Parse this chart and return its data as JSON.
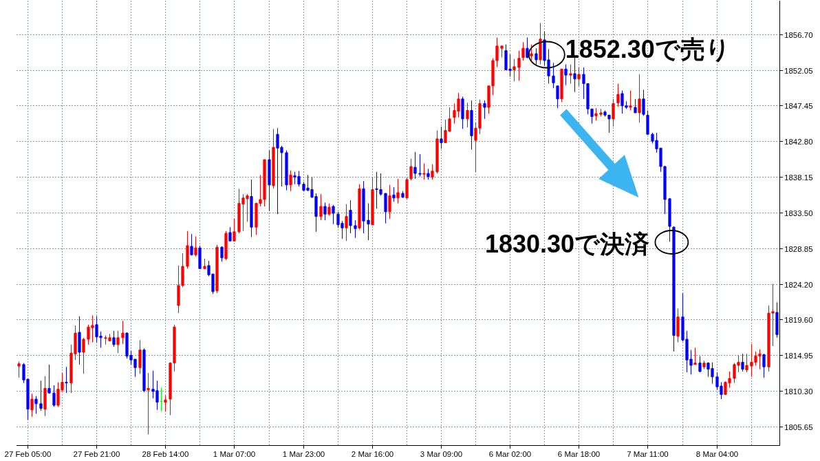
{
  "chart_data": {
    "type": "candlestick",
    "categories": [
      null,
      null,
      "27 Feb 05:00",
      null,
      null,
      null,
      null,
      null,
      null,
      null,
      null,
      null,
      null,
      null,
      null,
      null,
      null,
      null,
      "27 Feb 21:00",
      null,
      null,
      null,
      null,
      null,
      null,
      null,
      null,
      null,
      null,
      null,
      null,
      null,
      null,
      null,
      "28 Feb 14:00",
      null,
      null,
      null,
      null,
      null,
      null,
      null,
      null,
      null,
      null,
      null,
      null,
      null,
      null,
      null,
      "1 Mar 07:00",
      null,
      null,
      null,
      null,
      null,
      null,
      null,
      null,
      null,
      null,
      null,
      null,
      null,
      null,
      null,
      "1 Mar 23:00",
      null,
      null,
      null,
      null,
      null,
      null,
      null,
      null,
      null,
      null,
      null,
      null,
      null,
      null,
      null,
      "2 Mar 16:00",
      null,
      null,
      null,
      null,
      null,
      null,
      null,
      null,
      null,
      null,
      null,
      null,
      null,
      null,
      null,
      "3 Mar 09:00",
      null,
      null,
      null,
      null,
      null,
      null,
      null,
      null,
      null,
      null,
      null,
      null,
      null,
      null,
      null,
      "6 Mar 02:00",
      null,
      null,
      null,
      null,
      null,
      null,
      null,
      null,
      null,
      null,
      null,
      null,
      null,
      null,
      null,
      "6 Mar 18:00",
      null,
      null,
      null,
      null,
      null,
      null,
      null,
      null,
      null,
      null,
      null,
      null,
      null,
      null,
      null,
      "7 Mar 11:00",
      null,
      null,
      null,
      null,
      null,
      null,
      null,
      null,
      null,
      null,
      null,
      null,
      null,
      null,
      null,
      "8 Mar 04:00",
      null,
      null,
      null,
      null,
      null,
      null,
      null,
      null,
      null,
      null,
      null,
      null,
      null,
      null
    ],
    "ohlc": [
      [
        1813.5,
        1814.1,
        1812.0,
        1813.8
      ],
      [
        1813.7,
        1813.9,
        1811.3,
        1811.7
      ],
      [
        1811.8,
        1811.8,
        1806.5,
        1807.9
      ],
      [
        1807.8,
        1809.9,
        1806.9,
        1809.2
      ],
      [
        1809.2,
        1809.6,
        1807.3,
        1808.6
      ],
      [
        1808.6,
        1811.6,
        1807.7,
        1808.0
      ],
      [
        1807.9,
        1812.2,
        1807.0,
        1810.6
      ],
      [
        1810.6,
        1813.7,
        1809.9,
        1810.0
      ],
      [
        1810.0,
        1811.0,
        1808.2,
        1808.4
      ],
      [
        1808.4,
        1811.4,
        1808.2,
        1810.5
      ],
      [
        1810.4,
        1812.6,
        1810.2,
        1811.4
      ],
      [
        1811.4,
        1813.4,
        1810.0,
        1811.3
      ],
      [
        1811.3,
        1816.3,
        1810.0,
        1815.2
      ],
      [
        1815.1,
        1818.8,
        1814.3,
        1817.8
      ],
      [
        1817.9,
        1820.0,
        1813.7,
        1815.3
      ],
      [
        1815.3,
        1817.2,
        1812.5,
        1817.0
      ],
      [
        1817.0,
        1818.9,
        1816.3,
        1818.6
      ],
      [
        1818.5,
        1820.1,
        1816.6,
        1818.8
      ],
      [
        1818.9,
        1820.0,
        1816.6,
        1817.3
      ],
      [
        1817.4,
        1818.0,
        1815.9,
        1817.2
      ],
      [
        1817.1,
        1817.5,
        1816.3,
        1817.2
      ],
      [
        1816.8,
        1817.7,
        1816.7,
        1817.2
      ],
      [
        1817.2,
        1818.1,
        1816.0,
        1816.3
      ],
      [
        1816.3,
        1818.1,
        1815.2,
        1817.2
      ],
      [
        1817.2,
        1819.4,
        1816.4,
        1817.8
      ],
      [
        1817.8,
        1817.9,
        1814.5,
        1814.8
      ],
      [
        1814.9,
        1815.5,
        1813.7,
        1814.3
      ],
      [
        1814.4,
        1814.4,
        1812.1,
        1813.3
      ],
      [
        1813.3,
        1816.9,
        1812.5,
        1815.6
      ],
      [
        1815.6,
        1815.8,
        1810.1,
        1810.3
      ],
      [
        1810.4,
        1812.6,
        1804.6,
        1810.6
      ],
      [
        1810.5,
        1812.9,
        1809.3,
        1810.2
      ],
      [
        1810.3,
        1811.6,
        1807.8,
        1808.8
      ],
      [
        1808.9,
        1810.7,
        1807.6,
        1808.9
      ],
      [
        1808.8,
        1809.7,
        1807.6,
        1809.1
      ],
      [
        1809.2,
        1814.0,
        1807.1,
        1813.9
      ],
      [
        1813.9,
        1818.9,
        1812.8,
        1818.6
      ],
      [
        1821.4,
        1826.6,
        1820.4,
        1824.0
      ],
      [
        1824.0,
        1828.2,
        1823.8,
        1826.5
      ],
      [
        1826.5,
        1831.1,
        1826.2,
        1829.2
      ],
      [
        1829.1,
        1830.7,
        1827.9,
        1828.0
      ],
      [
        1828.0,
        1830.4,
        1827.8,
        1828.9
      ],
      [
        1828.9,
        1829.2,
        1826.2,
        1826.2
      ],
      [
        1826.2,
        1827.5,
        1826.2,
        1826.5
      ],
      [
        1826.6,
        1827.2,
        1825.2,
        1825.4
      ],
      [
        1825.5,
        1825.5,
        1822.9,
        1823.2
      ],
      [
        1823.3,
        1829.3,
        1823.0,
        1829.0
      ],
      [
        1829.0,
        1829.1,
        1827.1,
        1827.6
      ],
      [
        1827.5,
        1831.1,
        1827.3,
        1830.8
      ],
      [
        1830.9,
        1831.6,
        1829.8,
        1829.8
      ],
      [
        1829.8,
        1832.7,
        1829.8,
        1831.0
      ],
      [
        1831.0,
        1836.6,
        1830.8,
        1834.7
      ],
      [
        1834.6,
        1835.9,
        1831.1,
        1835.4
      ],
      [
        1835.3,
        1835.9,
        1832.3,
        1835.7
      ],
      [
        1835.6,
        1837.8,
        1830.3,
        1831.6
      ],
      [
        1831.6,
        1834.8,
        1830.6,
        1834.7
      ],
      [
        1834.7,
        1838.4,
        1834.3,
        1835.2
      ],
      [
        1835.2,
        1840.4,
        1834.3,
        1840.4
      ],
      [
        1840.4,
        1841.6,
        1833.7,
        1837.1
      ],
      [
        1837.0,
        1844.4,
        1836.6,
        1842.0
      ],
      [
        1843.7,
        1844.5,
        1833.3,
        1841.9
      ],
      [
        1842.0,
        1842.2,
        1836.9,
        1841.3
      ],
      [
        1841.3,
        1841.6,
        1836.4,
        1837.1
      ],
      [
        1837.1,
        1839.0,
        1836.3,
        1838.4
      ],
      [
        1838.3,
        1838.8,
        1837.2,
        1838.1
      ],
      [
        1838.2,
        1838.9,
        1836.9,
        1837.2
      ],
      [
        1837.2,
        1837.5,
        1836.3,
        1836.4
      ],
      [
        1836.7,
        1838.4,
        1836.3,
        1836.4
      ],
      [
        1836.5,
        1838.1,
        1835.4,
        1835.5
      ],
      [
        1835.6,
        1836.0,
        1831.0,
        1833.0
      ],
      [
        1833.0,
        1835.9,
        1832.5,
        1834.3
      ],
      [
        1834.3,
        1834.8,
        1832.5,
        1833.3
      ],
      [
        1833.3,
        1834.7,
        1833.1,
        1834.2
      ],
      [
        1834.3,
        1834.5,
        1832.0,
        1833.4
      ],
      [
        1833.3,
        1833.6,
        1831.5,
        1831.9
      ],
      [
        1832.1,
        1832.4,
        1830.1,
        1831.5
      ],
      [
        1831.5,
        1834.6,
        1829.8,
        1833.0
      ],
      [
        1833.8,
        1835.1,
        1830.8,
        1831.8
      ],
      [
        1831.8,
        1832.5,
        1830.2,
        1831.4
      ],
      [
        1831.5,
        1837.2,
        1831.3,
        1836.6
      ],
      [
        1836.6,
        1837.6,
        1830.8,
        1832.4
      ],
      [
        1832.5,
        1834.7,
        1829.9,
        1832.0
      ],
      [
        1831.9,
        1838.1,
        1831.9,
        1836.5
      ],
      [
        1836.6,
        1838.8,
        1834.0,
        1836.5
      ],
      [
        1836.5,
        1838.6,
        1835.7,
        1835.9
      ],
      [
        1836.0,
        1836.0,
        1832.1,
        1833.6
      ],
      [
        1833.6,
        1837.1,
        1832.7,
        1835.7
      ],
      [
        1835.8,
        1836.8,
        1834.9,
        1835.4
      ],
      [
        1835.4,
        1837.9,
        1834.7,
        1836.1
      ],
      [
        1836.0,
        1836.3,
        1835.4,
        1835.5
      ],
      [
        1835.4,
        1838.0,
        1835.3,
        1837.8
      ],
      [
        1837.9,
        1840.5,
        1837.7,
        1839.5
      ],
      [
        1839.4,
        1841.4,
        1837.9,
        1838.6
      ],
      [
        1838.6,
        1841.1,
        1838.2,
        1838.5
      ],
      [
        1838.5,
        1839.9,
        1837.8,
        1838.6
      ],
      [
        1838.6,
        1839.2,
        1837.8,
        1838.2
      ],
      [
        1838.1,
        1839.8,
        1837.8,
        1838.9
      ],
      [
        1838.8,
        1844.2,
        1838.6,
        1843.1
      ],
      [
        1843.1,
        1844.7,
        1841.8,
        1842.6
      ],
      [
        1842.6,
        1845.6,
        1842.6,
        1844.2
      ],
      [
        1844.1,
        1847.2,
        1844.0,
        1845.7
      ],
      [
        1845.9,
        1847.7,
        1845.1,
        1846.8
      ],
      [
        1846.7,
        1849.1,
        1845.9,
        1848.3
      ],
      [
        1848.3,
        1848.6,
        1844.4,
        1845.7
      ],
      [
        1845.7,
        1847.8,
        1844.6,
        1846.8
      ],
      [
        1846.8,
        1848.1,
        1841.7,
        1843.5
      ],
      [
        1842.9,
        1845.2,
        1838.8,
        1844.5
      ],
      [
        1844.5,
        1848.2,
        1843.7,
        1847.7
      ],
      [
        1847.7,
        1848.1,
        1845.7,
        1847.2
      ],
      [
        1847.2,
        1850.0,
        1846.4,
        1850.0
      ],
      [
        1850.0,
        1853.6,
        1848.8,
        1853.3
      ],
      [
        1853.3,
        1856.3,
        1852.5,
        1855.2
      ],
      [
        1854.9,
        1855.2,
        1853.7,
        1855.2
      ],
      [
        1854.6,
        1855.4,
        1852.1,
        1852.1
      ],
      [
        1852.2,
        1854.1,
        1851.2,
        1852.0
      ],
      [
        1852.1,
        1853.5,
        1850.6,
        1852.5
      ],
      [
        1852.4,
        1854.6,
        1850.7,
        1853.6
      ],
      [
        1853.7,
        1855.7,
        1853.3,
        1854.9
      ],
      [
        1854.9,
        1856.3,
        1853.6,
        1853.7
      ],
      [
        1853.9,
        1855.4,
        1853.3,
        1854.2
      ],
      [
        1854.2,
        1854.9,
        1852.8,
        1853.4
      ],
      [
        1853.4,
        1858.2,
        1852.8,
        1856.1
      ],
      [
        1856.0,
        1857.1,
        1852.6,
        1853.3
      ],
      [
        1853.4,
        1854.8,
        1850.3,
        1851.3
      ],
      [
        1851.3,
        1853.0,
        1849.7,
        1850.4
      ],
      [
        1850.0,
        1850.0,
        1847.1,
        1848.3
      ],
      [
        1848.3,
        1852.2,
        1847.9,
        1852.2
      ],
      [
        1852.2,
        1852.8,
        1850.1,
        1851.4
      ],
      [
        1851.4,
        1852.8,
        1850.3,
        1851.6
      ],
      [
        1851.6,
        1853.7,
        1849.2,
        1850.9
      ],
      [
        1850.9,
        1852.4,
        1850.0,
        1851.5
      ],
      [
        1851.5,
        1852.4,
        1848.3,
        1850.3
      ],
      [
        1850.3,
        1850.3,
        1846.3,
        1847.0
      ],
      [
        1847.0,
        1847.0,
        1845.1,
        1846.0
      ],
      [
        1846.1,
        1847.1,
        1845.5,
        1846.4
      ],
      [
        1846.3,
        1847.0,
        1846.0,
        1846.5
      ],
      [
        1846.6,
        1846.8,
        1846.0,
        1846.2
      ],
      [
        1846.2,
        1846.2,
        1843.9,
        1845.7
      ],
      [
        1845.7,
        1848.3,
        1844.7,
        1847.7
      ],
      [
        1847.8,
        1850.3,
        1847.3,
        1848.9
      ],
      [
        1849.0,
        1849.4,
        1846.4,
        1847.4
      ],
      [
        1847.4,
        1848.0,
        1847.0,
        1847.2
      ],
      [
        1847.2,
        1849.4,
        1846.8,
        1847.4
      ],
      [
        1847.2,
        1848.3,
        1846.5,
        1846.5
      ],
      [
        1846.5,
        1851.5,
        1845.2,
        1848.3
      ],
      [
        1848.3,
        1849.5,
        1846.1,
        1846.3
      ],
      [
        1846.2,
        1846.8,
        1843.6,
        1843.7
      ],
      [
        1843.7,
        1843.9,
        1842.5,
        1842.8
      ],
      [
        1842.9,
        1843.9,
        1841.3,
        1841.8
      ],
      [
        1841.9,
        1841.9,
        1838.8,
        1839.5
      ],
      [
        1839.5,
        1839.6,
        1833.3,
        1835.2
      ],
      [
        1835.3,
        1835.4,
        1829.7,
        1831.7
      ],
      [
        1831.6,
        1831.7,
        1815.4,
        1817.5
      ],
      [
        1817.4,
        1821.0,
        1816.6,
        1819.9
      ],
      [
        1819.9,
        1823.0,
        1816.7,
        1816.9
      ],
      [
        1817.0,
        1818.1,
        1812.7,
        1814.3
      ],
      [
        1814.4,
        1815.6,
        1812.4,
        1813.6
      ],
      [
        1813.7,
        1815.9,
        1813.7,
        1813.9
      ],
      [
        1813.9,
        1814.8,
        1812.7,
        1812.8
      ],
      [
        1813.4,
        1814.2,
        1813.1,
        1813.9
      ],
      [
        1813.9,
        1814.0,
        1812.1,
        1813.1
      ],
      [
        1813.2,
        1814.0,
        1811.2,
        1812.1
      ],
      [
        1812.1,
        1812.7,
        1810.4,
        1810.8
      ],
      [
        1810.9,
        1811.4,
        1809.2,
        1809.8
      ],
      [
        1809.8,
        1811.5,
        1809.8,
        1811.4
      ],
      [
        1811.3,
        1812.8,
        1810.7,
        1811.9
      ],
      [
        1811.9,
        1813.9,
        1811.3,
        1813.7
      ],
      [
        1813.6,
        1814.9,
        1812.7,
        1814.0
      ],
      [
        1814.0,
        1815.1,
        1812.8,
        1813.1
      ],
      [
        1813.0,
        1815.1,
        1812.7,
        1813.6
      ],
      [
        1813.5,
        1816.4,
        1812.1,
        1814.0
      ],
      [
        1814.0,
        1815.4,
        1813.6,
        1814.8
      ],
      [
        1814.8,
        1815.7,
        1813.1,
        1815.1
      ],
      [
        1815.0,
        1815.1,
        1812.0,
        1813.4
      ],
      [
        1813.4,
        1821.4,
        1812.8,
        1820.4
      ],
      [
        1820.4,
        1824.2,
        1816.1,
        1820.6
      ],
      [
        1820.5,
        1821.8,
        1817.2,
        1817.6
      ]
    ],
    "colors": [
      "#ff0000",
      "#0000ff",
      "#0000ff",
      "#ff0000",
      "#0000ff",
      "#0000ff",
      "#ff0000",
      "#0000ff",
      "#0000ff",
      "#ff0000",
      "#ff0000",
      "#0000ff",
      "#ff0000",
      "#ff0000",
      "#0000ff",
      "#ff0000",
      "#ff0000",
      "#ff0000",
      "#0000ff",
      "#0000ff",
      "#ff0000",
      "#ff0000",
      "#0000ff",
      "#ff0000",
      "#ff0000",
      "#0000ff",
      "#0000ff",
      "#0000ff",
      "#ff0000",
      "#0000ff",
      "#ff0000",
      "#0000ff",
      "#0000ff",
      "#00ff00",
      "#ff0000",
      "#ff0000",
      "#ff0000",
      "#ff0000",
      "#ff0000",
      "#ff0000",
      "#0000ff",
      "#ff0000",
      "#0000ff",
      "#ff0000",
      "#0000ff",
      "#0000ff",
      "#ff0000",
      "#0000ff",
      "#ff0000",
      "#0000ff",
      "#ff0000",
      "#ff0000",
      "#ff0000",
      "#ff0000",
      "#0000ff",
      "#ff0000",
      "#ff0000",
      "#ff0000",
      "#0000ff",
      "#ff0000",
      "#0000ff",
      "#0000ff",
      "#0000ff",
      "#ff0000",
      "#0000ff",
      "#0000ff",
      "#0000ff",
      "#0000ff",
      "#0000ff",
      "#0000ff",
      "#ff0000",
      "#0000ff",
      "#ff0000",
      "#0000ff",
      "#0000ff",
      "#0000ff",
      "#ff0000",
      "#0000ff",
      "#0000ff",
      "#ff0000",
      "#0000ff",
      "#0000ff",
      "#ff0000",
      "#0000ff",
      "#0000ff",
      "#0000ff",
      "#ff0000",
      "#0000ff",
      "#ff0000",
      "#0000ff",
      "#ff0000",
      "#ff0000",
      "#0000ff",
      "#0000ff",
      "#ff0000",
      "#0000ff",
      "#ff0000",
      "#ff0000",
      "#0000ff",
      "#ff0000",
      "#ff0000",
      "#ff0000",
      "#ff0000",
      "#0000ff",
      "#ff0000",
      "#0000ff",
      "#ff0000",
      "#ff0000",
      "#0000ff",
      "#ff0000",
      "#ff0000",
      "#ff0000",
      "#ff0000",
      "#0000ff",
      "#0000ff",
      "#ff0000",
      "#ff0000",
      "#ff0000",
      "#0000ff",
      "#ff0000",
      "#0000ff",
      "#ff0000",
      "#0000ff",
      "#0000ff",
      "#0000ff",
      "#0000ff",
      "#ff0000",
      "#0000ff",
      "#ff0000",
      "#0000ff",
      "#ff0000",
      "#0000ff",
      "#0000ff",
      "#0000ff",
      "#ff0000",
      "#ff0000",
      "#0000ff",
      "#0000ff",
      "#ff0000",
      "#ff0000",
      "#0000ff",
      "#0000ff",
      "#ff0000",
      "#0000ff",
      "#ff0000",
      "#0000ff",
      "#0000ff",
      "#0000ff",
      "#0000ff",
      "#0000ff",
      "#0000ff",
      "#0000ff",
      "#0000ff",
      "#ff0000",
      "#0000ff",
      "#0000ff",
      "#0000ff",
      "#ff0000",
      "#0000ff",
      "#ff0000",
      "#0000ff",
      "#0000ff",
      "#0000ff",
      "#0000ff",
      "#ff0000",
      "#ff0000",
      "#ff0000",
      "#ff0000",
      "#0000ff",
      "#ff0000",
      "#ff0000",
      "#ff0000",
      "#ff0000",
      "#0000ff",
      "#ff0000",
      "#ff0000",
      "#0000ff"
    ],
    "ylim": [
      1803.2,
      1861.1
    ],
    "yticks": [
      {
        "value": 1856.7,
        "label": "1856.70"
      },
      {
        "value": 1852.05,
        "label": "1852.05"
      },
      {
        "value": 1847.45,
        "label": "1847.45"
      },
      {
        "value": 1842.8,
        "label": "1842.80"
      },
      {
        "value": 1838.15,
        "label": "1838.15"
      },
      {
        "value": 1833.5,
        "label": "1833.50"
      },
      {
        "value": 1828.85,
        "label": "1828.85"
      },
      {
        "value": 1824.2,
        "label": "1824.20"
      },
      {
        "value": 1819.6,
        "label": "1819.60"
      },
      {
        "value": 1814.95,
        "label": "1814.95"
      },
      {
        "value": 1810.3,
        "label": "1810.30"
      },
      {
        "value": 1805.65,
        "label": "1805.65"
      }
    ],
    "grid": true,
    "annotations": [
      "1852.30で売り",
      "1830.30で決済"
    ]
  }
}
